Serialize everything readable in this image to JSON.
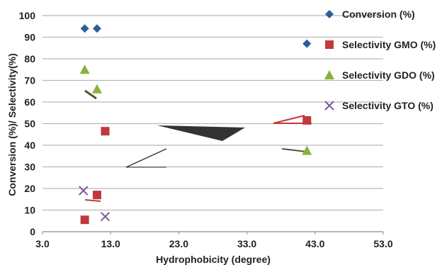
{
  "chart_data": {
    "type": "scatter",
    "xlabel": "Hydrophobicity (degree)",
    "ylabel": "Conversion (%)/ Selectivity(%)",
    "xlim": [
      3.0,
      53.0
    ],
    "ylim": [
      0,
      100
    ],
    "xticks": [
      "3.0",
      "13.0",
      "23.0",
      "33.0",
      "43.0",
      "53.0"
    ],
    "yticks": [
      "0",
      "10",
      "20",
      "30",
      "40",
      "50",
      "60",
      "70",
      "80",
      "90",
      "100"
    ],
    "grid": "horizontal",
    "legend_position": "right",
    "series": [
      {
        "name": "Conversion (%)",
        "marker": "diamond",
        "color": "#2e5d99",
        "x": [
          9.2,
          11.0,
          41.8
        ],
        "y": [
          94,
          94,
          87
        ]
      },
      {
        "name": "Selectivity  GMO (%)",
        "marker": "square",
        "color": "#c0393b",
        "x": [
          9.2,
          11.0,
          12.2,
          41.8
        ],
        "y": [
          5.5,
          17,
          46.5,
          51.5
        ]
      },
      {
        "name": "Selectivity GDO (%)",
        "marker": "triangle",
        "color": "#8bb13c",
        "x": [
          9.2,
          11.0,
          41.8
        ],
        "y": [
          75,
          66,
          37.5
        ]
      },
      {
        "name": "Selectivity  GTO (%)",
        "marker": "cross",
        "color": "#7e5a96",
        "x": [
          9.0,
          12.2
        ],
        "y": [
          19,
          7
        ]
      }
    ]
  }
}
